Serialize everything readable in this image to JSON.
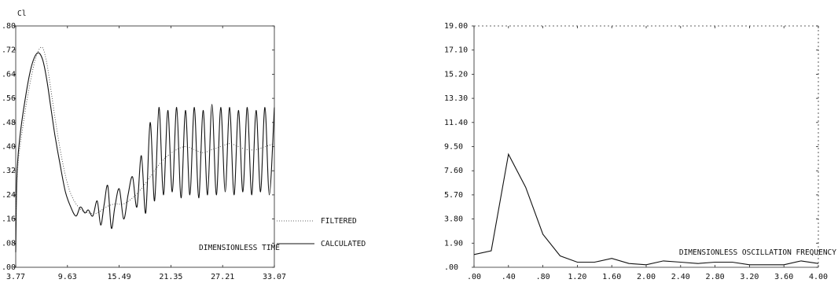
{
  "chart_data": [
    {
      "type": "line",
      "ylabel": "Cl",
      "xlabel": "DIMENSIONLESS TIME",
      "xlim": [
        3.77,
        33.07
      ],
      "ylim": [
        0.0,
        0.8
      ],
      "x_tick_labels": [
        "3.77",
        "9.63",
        "15.49",
        "21.35",
        "27.21",
        "33.07"
      ],
      "y_tick_labels": [
        ".00",
        ".08",
        ".16",
        ".24",
        ".32",
        ".40",
        ".48",
        ".56",
        ".64",
        ".72",
        ".80"
      ],
      "legend": [
        "FILTERED",
        "CALCULATED"
      ],
      "legend_placement": "right",
      "series": [
        {
          "name": "CALCULATED",
          "style": "solid",
          "x": [
            3.77,
            3.9,
            4.2,
            4.8,
            5.5,
            6.2,
            6.8,
            7.3,
            7.7,
            8.2,
            8.8,
            9.4,
            10.0,
            10.6,
            11.1,
            11.6,
            12.0,
            12.5,
            13.0,
            13.4,
            13.8,
            14.2,
            14.6,
            15.0,
            15.5,
            16.0,
            16.5,
            17.0,
            17.5,
            18.0,
            18.5,
            19.0,
            19.5,
            20.0,
            20.5,
            21.0,
            21.5,
            22.0,
            22.5,
            23.0,
            23.5,
            24.0,
            24.5,
            25.0,
            25.5,
            26.0,
            26.5,
            27.0,
            27.5,
            28.0,
            28.5,
            29.0,
            29.5,
            30.0,
            30.5,
            31.0,
            31.5,
            32.0,
            32.5,
            33.07
          ],
          "y": [
            0.05,
            0.3,
            0.42,
            0.55,
            0.66,
            0.71,
            0.69,
            0.62,
            0.54,
            0.44,
            0.34,
            0.25,
            0.2,
            0.17,
            0.2,
            0.18,
            0.19,
            0.17,
            0.22,
            0.14,
            0.21,
            0.27,
            0.13,
            0.2,
            0.26,
            0.16,
            0.24,
            0.3,
            0.2,
            0.37,
            0.18,
            0.48,
            0.22,
            0.53,
            0.24,
            0.52,
            0.25,
            0.53,
            0.23,
            0.52,
            0.24,
            0.53,
            0.23,
            0.52,
            0.24,
            0.54,
            0.24,
            0.53,
            0.25,
            0.53,
            0.24,
            0.52,
            0.25,
            0.53,
            0.24,
            0.52,
            0.25,
            0.53,
            0.24,
            0.53
          ]
        },
        {
          "name": "FILTERED",
          "style": "dotted",
          "x": [
            3.77,
            4.0,
            4.5,
            5.2,
            6.0,
            6.7,
            7.2,
            7.7,
            8.3,
            9.0,
            9.7,
            10.4,
            11.2,
            12.0,
            13.0,
            14.0,
            15.0,
            16.0,
            17.0,
            18.0,
            19.0,
            20.0,
            21.0,
            22.0,
            23.0,
            24.0,
            25.0,
            26.0,
            27.0,
            28.0,
            29.0,
            30.0,
            31.0,
            32.0,
            33.07
          ],
          "y": [
            0.15,
            0.33,
            0.45,
            0.58,
            0.69,
            0.73,
            0.69,
            0.6,
            0.48,
            0.36,
            0.27,
            0.22,
            0.19,
            0.18,
            0.18,
            0.2,
            0.21,
            0.21,
            0.23,
            0.26,
            0.3,
            0.34,
            0.37,
            0.39,
            0.4,
            0.39,
            0.38,
            0.39,
            0.4,
            0.41,
            0.4,
            0.39,
            0.39,
            0.4,
            0.41
          ]
        }
      ]
    },
    {
      "type": "line",
      "xlabel": "DIMENSIONLESS OSCILLATION FREQUENCY",
      "xlim": [
        0.0,
        4.0
      ],
      "ylim": [
        0.0,
        19.0
      ],
      "x_tick_labels": [
        ".00",
        ".40",
        ".80",
        "1.20",
        "1.60",
        "2.00",
        "2.40",
        "2.80",
        "3.20",
        "3.60",
        "4.00"
      ],
      "y_tick_labels": [
        ".00",
        "1.90",
        "3.80",
        "5.70",
        "7.60",
        "9.50",
        "11.40",
        "13.30",
        "15.20",
        "17.10",
        "19.00"
      ],
      "series": [
        {
          "style": "solid",
          "x": [
            0.0,
            0.2,
            0.4,
            0.6,
            0.8,
            1.0,
            1.2,
            1.4,
            1.6,
            1.8,
            2.0,
            2.2,
            2.4,
            2.6,
            2.8,
            3.0,
            3.2,
            3.4,
            3.6,
            3.8,
            4.0
          ],
          "y": [
            1.0,
            1.3,
            8.9,
            6.3,
            2.6,
            0.9,
            0.4,
            0.4,
            0.7,
            0.3,
            0.2,
            0.5,
            0.4,
            0.3,
            0.4,
            0.4,
            0.2,
            0.2,
            0.2,
            0.5,
            0.3
          ]
        }
      ]
    }
  ]
}
